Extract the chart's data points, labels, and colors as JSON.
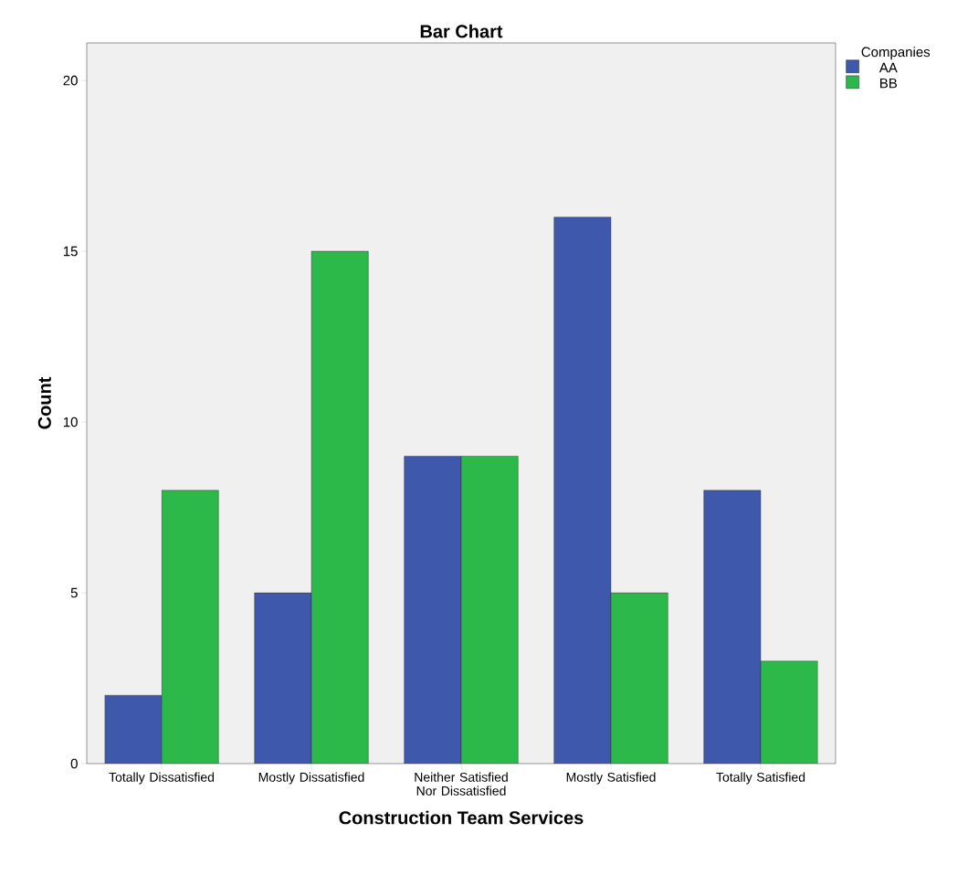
{
  "chart_data": {
    "type": "bar",
    "title": "Bar Chart",
    "xlabel": "Construction Team Services",
    "ylabel": "Count",
    "legend_title": "Companies",
    "categories": [
      "Totally Dissatisfied",
      "Mostly Dissatisfied",
      "Neither Satisfied Nor Dissatisfied",
      "Mostly Satisfied",
      "Totally Satisfied"
    ],
    "series": [
      {
        "name": "AA",
        "color": "#3e58ac",
        "values": [
          2,
          5,
          9,
          16,
          8
        ]
      },
      {
        "name": "BB",
        "color": "#2db84a",
        "values": [
          8,
          15,
          9,
          5,
          3
        ]
      }
    ],
    "ylim": [
      0,
      21.1
    ],
    "yticks": [
      0,
      5,
      10,
      15,
      20
    ],
    "grid": false,
    "legend": "top right"
  }
}
